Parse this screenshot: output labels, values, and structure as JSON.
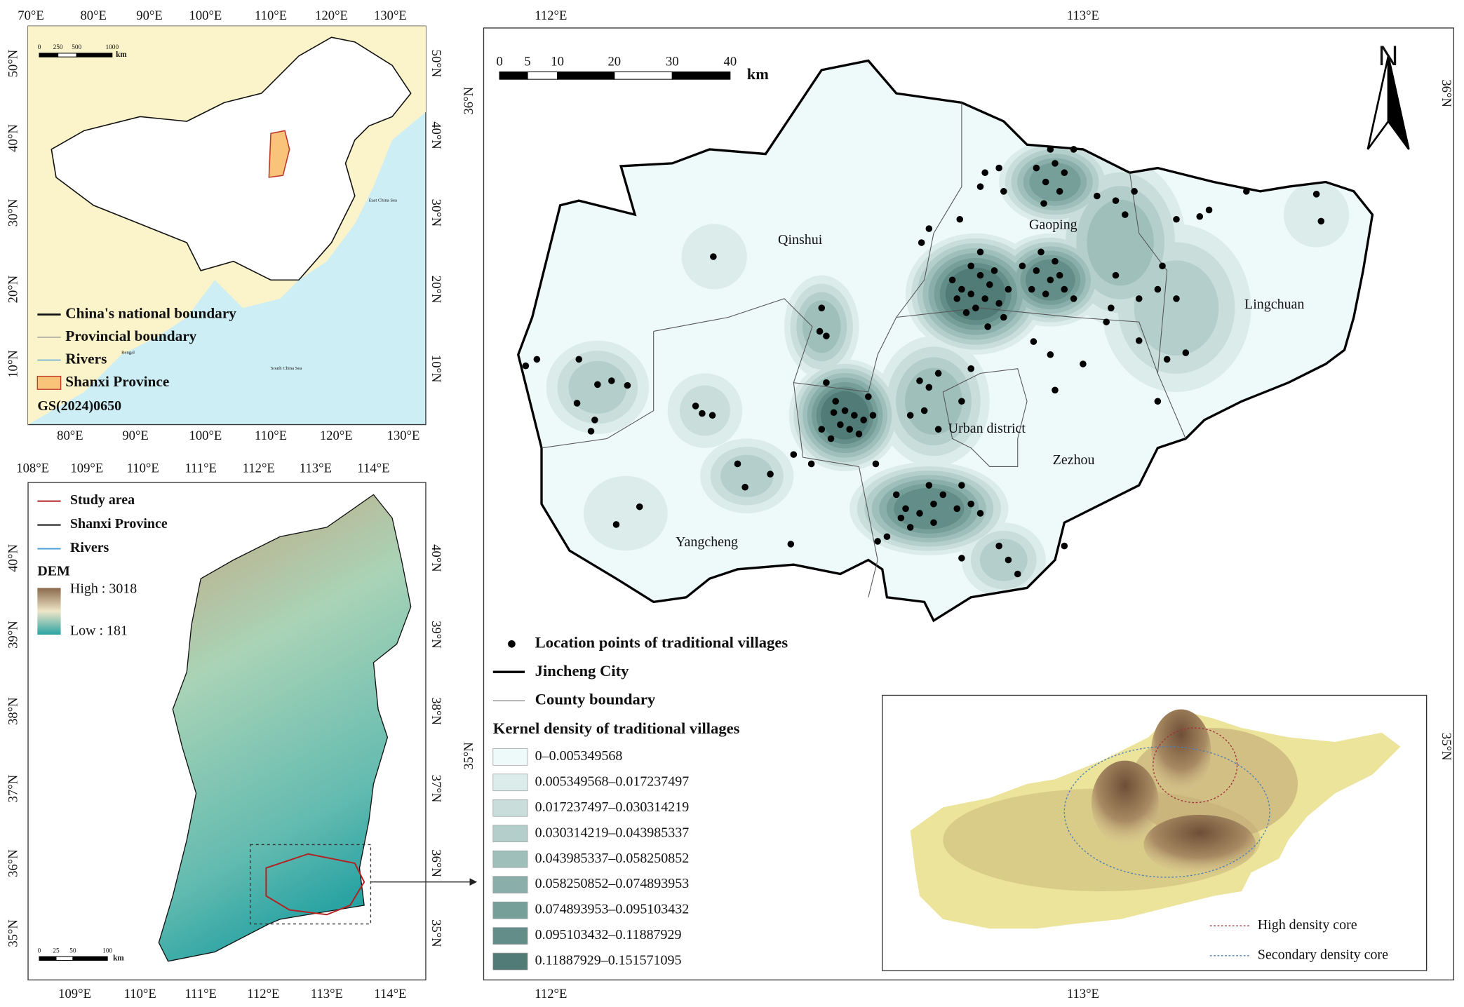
{
  "china_inset": {
    "top_ticks": [
      "70°E",
      "80°E",
      "90°E",
      "100°E",
      "110°E",
      "120°E",
      "130°E"
    ],
    "bottom_ticks": [
      "80°E",
      "90°E",
      "100°E",
      "110°E",
      "120°E",
      "130°E"
    ],
    "left_ticks": [
      "50°N",
      "40°N",
      "30°N",
      "20°N",
      "10°N"
    ],
    "right_ticks": [
      "50°N",
      "40°N",
      "30°N",
      "20°N",
      "10°N"
    ],
    "scale": [
      "0",
      "250",
      "500",
      "1000"
    ],
    "scale_unit": "km",
    "legend": [
      "China's national boundary",
      "Provincial boundary",
      "Rivers",
      "Shanxi Province"
    ],
    "sea_labels": [
      "East China Sea",
      "Bengal",
      "South China Sea"
    ],
    "map_number": "GS(2024)0650"
  },
  "shanxi_inset": {
    "top_ticks": [
      "108°E",
      "109°E",
      "110°E",
      "111°E",
      "112°E",
      "113°E",
      "114°E"
    ],
    "bottom_ticks": [
      "109°E",
      "110°E",
      "111°E",
      "112°E",
      "113°E",
      "114°E"
    ],
    "left_ticks": [
      "40°N",
      "39°N",
      "38°N",
      "37°N",
      "36°N",
      "35°N"
    ],
    "right_ticks": [
      "40°N",
      "39°N",
      "38°N",
      "37°N",
      "36°N",
      "35°N"
    ],
    "legend": [
      "Study area",
      "Shanxi Province",
      "Rivers"
    ],
    "dem_title": "DEM",
    "dem_high": "High : 3018",
    "dem_low": "Low : 181",
    "scale": [
      "0",
      "25",
      "50",
      "100"
    ],
    "scale_unit": "km"
  },
  "main_map": {
    "top_ticks": [
      "112°E",
      "113°E"
    ],
    "bottom_ticks": [
      "112°E",
      "113°E"
    ],
    "left_ticks": [
      "36°N",
      "35°N"
    ],
    "right_ticks": [
      "36°N",
      "35°N"
    ],
    "scale": [
      "0",
      "5",
      "10",
      "20",
      "30",
      "40"
    ],
    "scale_unit": "km",
    "north": "N",
    "counties": [
      "Qinshui",
      "Gaoping",
      "Lingchuan",
      "Urban district",
      "Zezhou",
      "Yangcheng"
    ]
  },
  "legend": {
    "items": [
      "Location points of traditional villages",
      "Jincheng City",
      "County boundary"
    ],
    "density_title": "Kernel density of traditional villages",
    "classes": [
      {
        "label": "0–0.005349568",
        "color": "#eef9f9"
      },
      {
        "label": "0.005349568–0.017237497",
        "color": "#dcecea"
      },
      {
        "label": "0.017237497–0.030314219",
        "color": "#c9dedb"
      },
      {
        "label": "0.030314219–0.043985337",
        "color": "#b4cfcb"
      },
      {
        "label": "0.043985337–0.058250852",
        "color": "#9fbfbb"
      },
      {
        "label": "0.058250852–0.074893953",
        "color": "#8aafab"
      },
      {
        "label": "0.074893953–0.095103432",
        "color": "#779f9a"
      },
      {
        "label": "0.095103432–0.11887929",
        "color": "#638d88"
      },
      {
        "label": "0.11887929–0.151571095",
        "color": "#507b76"
      }
    ]
  },
  "inset_3d": {
    "legend": [
      {
        "label": "High density core",
        "color": "#a0303a"
      },
      {
        "label": "Secondary density core",
        "color": "#4a7fb5"
      }
    ]
  }
}
